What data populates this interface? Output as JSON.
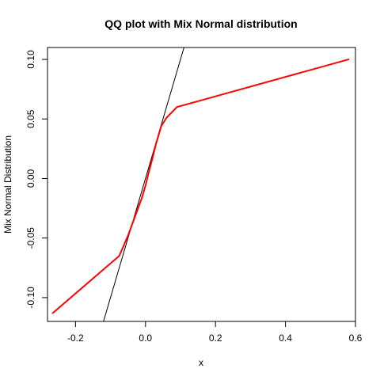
{
  "chart_data": {
    "type": "line",
    "title": "QQ plot with Mix Normal distribution",
    "xlabel": "x",
    "ylabel": "Mix Normal Distribution",
    "xlim": [
      -0.28,
      0.6
    ],
    "ylim": [
      -0.12,
      0.11
    ],
    "x_ticks": [
      -0.2,
      0.0,
      0.2,
      0.4,
      0.6
    ],
    "x_tick_labels": [
      "-0.2",
      "0.0",
      "0.2",
      "0.4",
      "0.6"
    ],
    "y_ticks": [
      -0.1,
      -0.05,
      0.0,
      0.05,
      0.1
    ],
    "y_tick_labels": [
      "-0.10",
      "-0.05",
      "0.00",
      "0.05",
      "0.10"
    ],
    "grid": false,
    "legend": "none",
    "series": [
      {
        "color": "#ff0000",
        "line_width": 2,
        "x": [
          -0.265,
          -0.075,
          -0.05,
          -0.03,
          -0.01,
          0.0,
          0.01,
          0.02,
          0.03,
          0.045,
          0.06,
          0.09,
          0.58
        ],
        "y": [
          -0.113,
          -0.065,
          -0.048,
          -0.032,
          -0.016,
          -0.006,
          0.006,
          0.017,
          0.029,
          0.044,
          0.051,
          0.06,
          0.1
        ]
      }
    ],
    "reference_line": {
      "color": "#000000",
      "x": [
        -0.12,
        0.11
      ],
      "y": [
        -0.12,
        0.11
      ]
    }
  }
}
